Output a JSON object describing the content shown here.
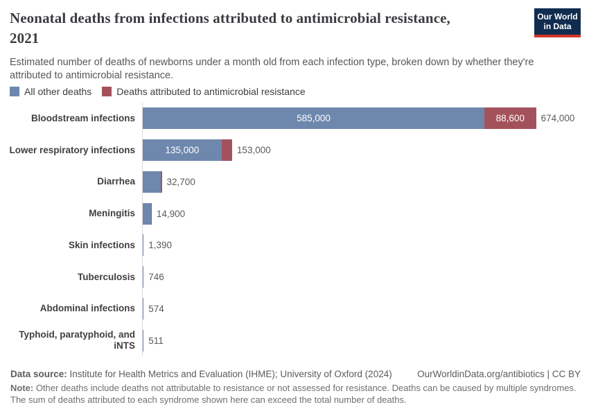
{
  "header": {
    "title_line1": "Neonatal deaths from infections attributed to antimicrobial resistance,",
    "title_line2": "2021",
    "subtitle": "Estimated number of deaths of newborns under a month old from each infection type, broken down by whether they're attributed to antimicrobial resistance.",
    "logo": {
      "line1": "Our World",
      "line2": "in Data"
    }
  },
  "colors": {
    "other_deaths": "#6e87ad",
    "amr_deaths": "#a3525c",
    "axis": "#d8d8d8",
    "logo_navy": "#102d50",
    "logo_red": "#d23728"
  },
  "legend": [
    {
      "label": "All other deaths",
      "color": "#6e87ad"
    },
    {
      "label": "Deaths attributed to antimicrobial resistance",
      "color": "#a3525c"
    }
  ],
  "chart_data": {
    "type": "bar",
    "orientation": "horizontal",
    "stacked": true,
    "xmax": 674000,
    "grid": false,
    "legend_position": "top-left",
    "categories": [
      "Bloodstream infections",
      "Lower respiratory infections",
      "Diarrhea",
      "Meningitis",
      "Skin infections",
      "Tuberculosis",
      "Abdominal infections",
      "Typhoid, paratyphoid, and iNTS"
    ],
    "series": [
      {
        "name": "All other deaths",
        "values": [
          585000,
          135000,
          31000,
          13800,
          1390,
          746,
          574,
          511
        ]
      },
      {
        "name": "Deaths attributed to antimicrobial resistance",
        "values": [
          88600,
          18000,
          1700,
          1100,
          0,
          0,
          0,
          0
        ]
      }
    ],
    "rows": [
      {
        "category": "Bloodstream infections",
        "other": 585000,
        "amr": 88600,
        "total": 674000,
        "other_label": "585,000",
        "amr_label": "88,600",
        "total_label": "674,000"
      },
      {
        "category": "Lower respiratory infections",
        "other": 135000,
        "amr": 18000,
        "total": 153000,
        "other_label": "135,000",
        "amr_label": "",
        "total_label": "153,000"
      },
      {
        "category": "Diarrhea",
        "other": 31000,
        "amr": 1700,
        "total": 32700,
        "other_label": "",
        "amr_label": "",
        "total_label": "32,700"
      },
      {
        "category": "Meningitis",
        "other": 13800,
        "amr": 1100,
        "total": 14900,
        "other_label": "",
        "amr_label": "",
        "total_label": "14,900"
      },
      {
        "category": "Skin infections",
        "other": 1390,
        "amr": 0,
        "total": 1390,
        "other_label": "",
        "amr_label": "",
        "total_label": "1,390"
      },
      {
        "category": "Tuberculosis",
        "other": 746,
        "amr": 0,
        "total": 746,
        "other_label": "",
        "amr_label": "",
        "total_label": "746"
      },
      {
        "category": "Abdominal infections",
        "other": 574,
        "amr": 0,
        "total": 574,
        "other_label": "",
        "amr_label": "",
        "total_label": "574"
      },
      {
        "category": "Typhoid, paratyphoid, and iNTS",
        "other": 511,
        "amr": 0,
        "total": 511,
        "other_label": "",
        "amr_label": "",
        "total_label": "511"
      }
    ]
  },
  "footer": {
    "datasource_label": "Data source:",
    "datasource_text": " Institute for Health Metrics and Evaluation (IHME); University of Oxford (2024)",
    "link": "OurWorldinData.org/antibiotics | CC BY",
    "note_label": "Note:",
    "note_text": " Other deaths include deaths not attributable to resistance or not assessed for resistance. Deaths can be caused by multiple syndromes. The sum of deaths attributed to each syndrome shown here can exceed the total number of deaths."
  }
}
